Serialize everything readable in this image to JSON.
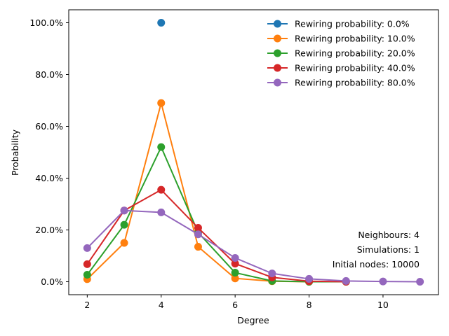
{
  "chart_data": {
    "type": "line",
    "xlabel": "Degree",
    "ylabel": "Probability",
    "xlim": [
      1.5,
      11.5
    ],
    "ylim": [
      -0.05,
      1.05
    ],
    "xticks": [
      2,
      4,
      6,
      8,
      10
    ],
    "xtick_labels": [
      "2",
      "4",
      "6",
      "8",
      "10"
    ],
    "yticks": [
      0,
      0.2,
      0.4,
      0.6,
      0.8,
      1.0
    ],
    "ytick_labels": [
      "0.0%",
      "20.0%",
      "40.0%",
      "60.0%",
      "80.0%",
      "100.0%"
    ],
    "grid": false,
    "legend_position": "top-right",
    "series": [
      {
        "name": "Rewiring probability: 0.0%",
        "color": "#1f77b4",
        "x": [
          4
        ],
        "y": [
          1.0
        ]
      },
      {
        "name": "Rewiring probability: 10.0%",
        "color": "#ff7f0e",
        "x": [
          2,
          3,
          4,
          5,
          6,
          7,
          8,
          9
        ],
        "y": [
          0.01,
          0.15,
          0.69,
          0.135,
          0.013,
          0.002,
          0.0,
          0.0
        ]
      },
      {
        "name": "Rewiring probability: 20.0%",
        "color": "#2ca02c",
        "x": [
          2,
          3,
          4,
          5,
          6,
          7,
          8,
          9
        ],
        "y": [
          0.027,
          0.22,
          0.52,
          0.19,
          0.035,
          0.003,
          0.0,
          0.0
        ]
      },
      {
        "name": "Rewiring probability: 40.0%",
        "color": "#d62728",
        "x": [
          2,
          3,
          4,
          5,
          6,
          7,
          8,
          9
        ],
        "y": [
          0.068,
          0.275,
          0.355,
          0.208,
          0.07,
          0.017,
          0.002,
          0.0
        ]
      },
      {
        "name": "Rewiring probability: 80.0%",
        "color": "#9467bd",
        "x": [
          2,
          3,
          4,
          5,
          6,
          7,
          8,
          9,
          10,
          11
        ],
        "y": [
          0.13,
          0.275,
          0.268,
          0.183,
          0.092,
          0.032,
          0.011,
          0.003,
          0.001,
          0.0
        ]
      }
    ],
    "annotations": [
      "Neighbours: 4",
      "Simulations: 1",
      "Initial nodes: 10000"
    ]
  }
}
